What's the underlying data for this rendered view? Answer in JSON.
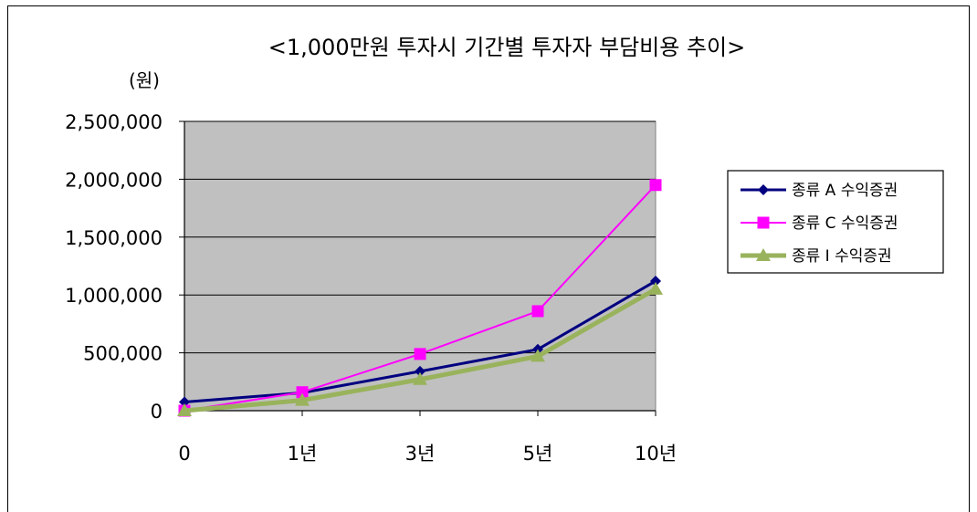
{
  "chart_data": {
    "type": "line",
    "title": "<1,000만원  투자시  기간별  투자자  부담비용  추이>",
    "ylabel": "(원)",
    "xlabel": "",
    "categories": [
      "0",
      "1년",
      "3년",
      "5년",
      "10년"
    ],
    "ylim": [
      0,
      2500000
    ],
    "yticks": [
      0,
      500000,
      1000000,
      1500000,
      2000000,
      2500000
    ],
    "ytick_labels": [
      "0",
      "500,000",
      "1,000,000",
      "1,500,000",
      "2,000,000",
      "2,500,000"
    ],
    "grid": true,
    "plot_background": "#c0c0c0",
    "legend_position": "right",
    "series": [
      {
        "name": "종류 A 수익증권",
        "color": "#000080",
        "marker": "diamond",
        "values": [
          75000,
          155000,
          340000,
          530000,
          1120000
        ]
      },
      {
        "name": "종류 C 수익증권",
        "color": "#ff00ff",
        "marker": "square",
        "values": [
          0,
          160000,
          490000,
          860000,
          1950000
        ]
      },
      {
        "name": "종류 I 수익증권",
        "color": "#99b35c",
        "marker": "triangle",
        "values": [
          0,
          90000,
          270000,
          470000,
          1050000
        ]
      }
    ]
  }
}
